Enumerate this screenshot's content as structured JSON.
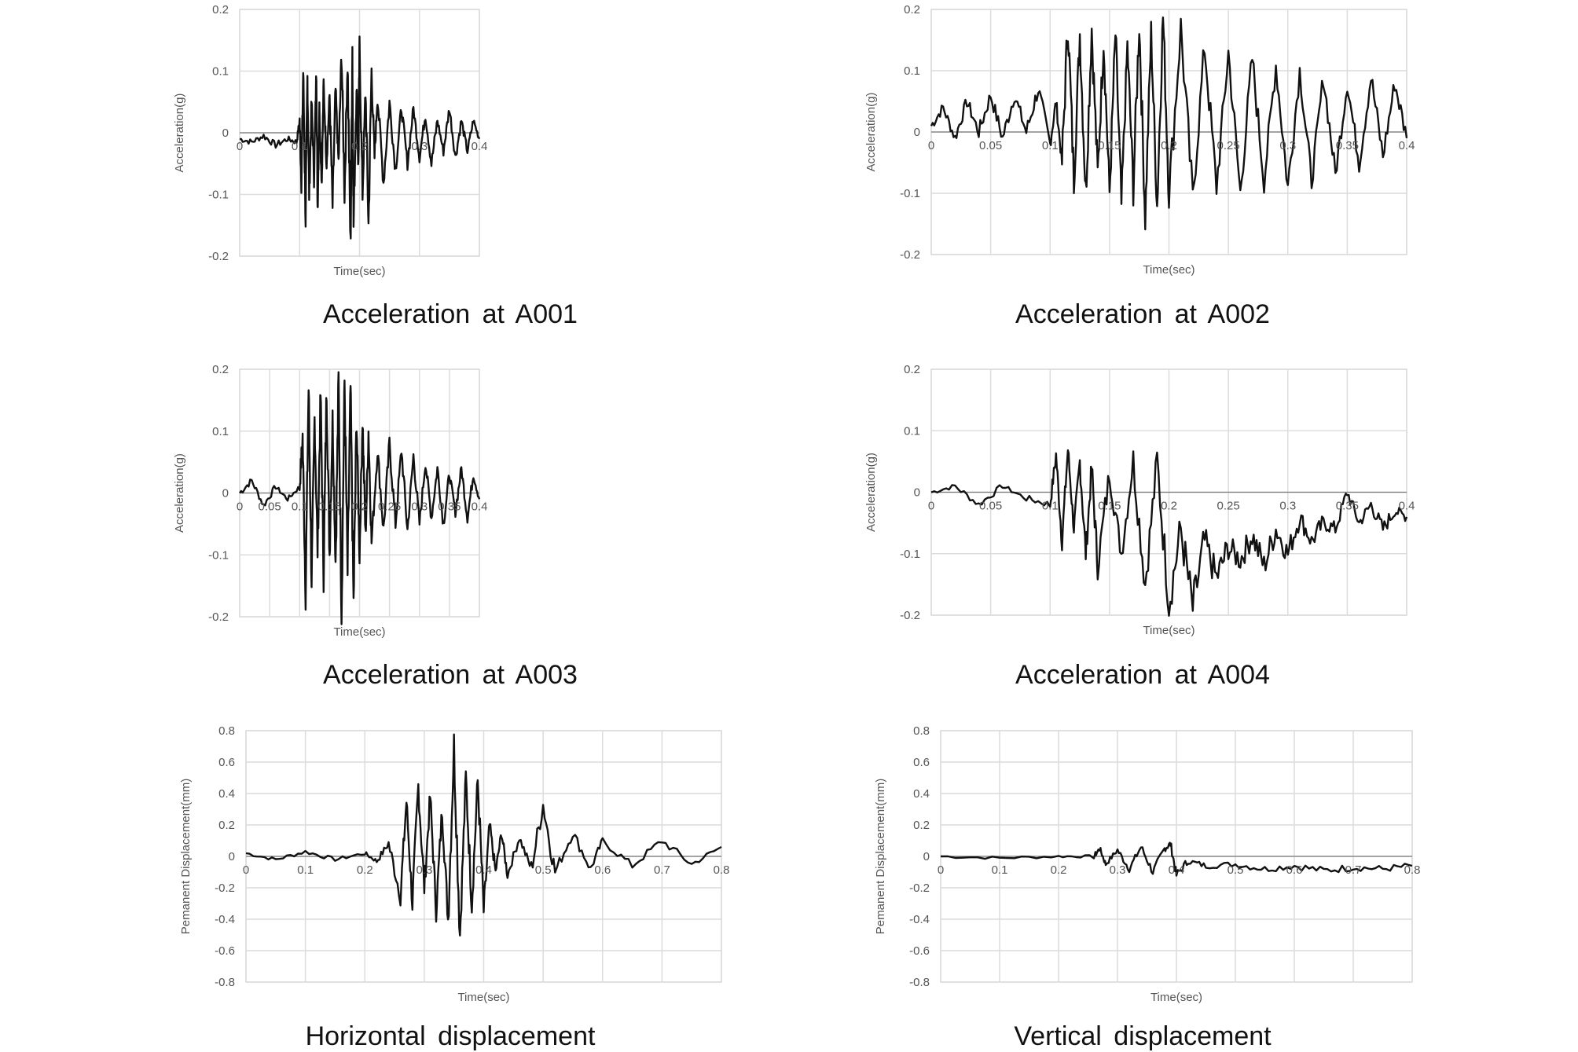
{
  "chart_data": [
    {
      "type": "line",
      "caption": "Acceleration at A001",
      "xlabel": "Time(sec)",
      "ylabel": "Acceleration(g)",
      "xlim": [
        0,
        0.4
      ],
      "ylim": [
        -0.2,
        0.2
      ],
      "xticks": [
        0,
        0.1,
        0.2,
        0.3,
        0.4
      ],
      "xtick_labels": [
        "0",
        "0.1",
        "0.2",
        "0.3",
        "0.4"
      ],
      "yticks": [
        -0.2,
        -0.1,
        0,
        0.1,
        0.2
      ],
      "ytick_labels": [
        "-0.2",
        "-0.1",
        "0",
        "0.1",
        "0.2"
      ],
      "grid": true,
      "series": [
        {
          "x": [
            0,
            0.02,
            0.04,
            0.06,
            0.08,
            0.095,
            0.1,
            0.103,
            0.106,
            0.11,
            0.113,
            0.116,
            0.12,
            0.124,
            0.128,
            0.13,
            0.133,
            0.137,
            0.14,
            0.145,
            0.15,
            0.155,
            0.16,
            0.165,
            0.17,
            0.175,
            0.18,
            0.185,
            0.188,
            0.19,
            0.195,
            0.198,
            0.2,
            0.205,
            0.21,
            0.215,
            0.22,
            0.225,
            0.23,
            0.24,
            0.25,
            0.26,
            0.27,
            0.28,
            0.29,
            0.3,
            0.31,
            0.32,
            0.33,
            0.34,
            0.35,
            0.36,
            0.37,
            0.38,
            0.39,
            0.4
          ],
          "y": [
            -0.01,
            -0.015,
            -0.005,
            -0.02,
            -0.01,
            -0.015,
            0.02,
            -0.08,
            0.1,
            -0.14,
            0.09,
            -0.1,
            0.05,
            -0.07,
            0.1,
            -0.12,
            0.04,
            -0.08,
            0.08,
            -0.05,
            0.06,
            -0.12,
            0.07,
            -0.05,
            0.13,
            -0.1,
            0.12,
            -0.19,
            0.14,
            -0.15,
            0.08,
            -0.06,
            0.14,
            -0.1,
            0.07,
            -0.15,
            0.1,
            -0.04,
            0.06,
            -0.08,
            0.05,
            -0.06,
            0.04,
            -0.05,
            0.04,
            -0.04,
            0.03,
            -0.05,
            0.02,
            -0.03,
            0.04,
            -0.04,
            0.02,
            -0.03,
            0.02,
            -0.01
          ]
        }
      ]
    },
    {
      "type": "line",
      "caption": "Acceleration at A002",
      "xlabel": "Time(sec)",
      "ylabel": "Acceleration(g)",
      "xlim": [
        0,
        0.4
      ],
      "ylim": [
        -0.2,
        0.2
      ],
      "xticks": [
        0,
        0.05,
        0.1,
        0.15,
        0.2,
        0.25,
        0.3,
        0.35,
        0.4
      ],
      "xtick_labels": [
        "0",
        "0.05",
        "0.1",
        "0.15",
        "0.2",
        "0.25",
        "0.3",
        "0.35",
        "0.4"
      ],
      "yticks": [
        -0.2,
        -0.1,
        0,
        0.1,
        0.2
      ],
      "ytick_labels": [
        "-0.2",
        "-0.1",
        "0",
        "0.1",
        "0.2"
      ],
      "grid": true,
      "series": [
        {
          "x": [
            0,
            0.01,
            0.02,
            0.03,
            0.04,
            0.05,
            0.06,
            0.07,
            0.08,
            0.09,
            0.1,
            0.105,
            0.11,
            0.115,
            0.12,
            0.125,
            0.13,
            0.135,
            0.14,
            0.145,
            0.15,
            0.155,
            0.16,
            0.165,
            0.17,
            0.175,
            0.18,
            0.185,
            0.19,
            0.195,
            0.2,
            0.21,
            0.22,
            0.23,
            0.24,
            0.25,
            0.26,
            0.27,
            0.28,
            0.29,
            0.3,
            0.31,
            0.32,
            0.33,
            0.34,
            0.35,
            0.36,
            0.37,
            0.38,
            0.39,
            0.4
          ],
          "y": [
            0.01,
            0.04,
            -0.01,
            0.05,
            0.0,
            0.06,
            -0.01,
            0.06,
            0.0,
            0.07,
            -0.02,
            0.05,
            -0.05,
            0.18,
            -0.08,
            0.16,
            -0.1,
            0.17,
            -0.07,
            0.15,
            -0.1,
            0.16,
            -0.12,
            0.14,
            -0.09,
            0.18,
            -0.14,
            0.16,
            -0.12,
            0.19,
            -0.1,
            0.17,
            -0.11,
            0.14,
            -0.09,
            0.13,
            -0.1,
            0.12,
            -0.08,
            0.11,
            -0.09,
            0.1,
            -0.08,
            0.09,
            -0.07,
            0.08,
            -0.05,
            0.09,
            -0.04,
            0.08,
            -0.01
          ]
        }
      ]
    },
    {
      "type": "line",
      "caption": "Acceleration at A003",
      "xlabel": "Time(sec)",
      "ylabel": "Acceleration(g)",
      "xlim": [
        0,
        0.4
      ],
      "ylim": [
        -0.2,
        0.2
      ],
      "xticks": [
        0,
        0.05,
        0.1,
        0.15,
        0.2,
        0.25,
        0.3,
        0.35,
        0.4
      ],
      "xtick_labels": [
        "0",
        "0.05",
        "0.1",
        "0.15",
        "0.2",
        "0.25",
        "0.3",
        "0.35",
        "0.4"
      ],
      "yticks": [
        -0.2,
        -0.1,
        0,
        0.1,
        0.2
      ],
      "ytick_labels": [
        "-0.2",
        "-0.1",
        "0",
        "0.1",
        "0.2"
      ],
      "grid": true,
      "series": [
        {
          "x": [
            0,
            0.02,
            0.04,
            0.06,
            0.08,
            0.1,
            0.105,
            0.11,
            0.115,
            0.12,
            0.125,
            0.13,
            0.135,
            0.14,
            0.145,
            0.15,
            0.155,
            0.16,
            0.165,
            0.17,
            0.175,
            0.18,
            0.185,
            0.19,
            0.195,
            0.2,
            0.205,
            0.21,
            0.215,
            0.22,
            0.23,
            0.24,
            0.25,
            0.26,
            0.27,
            0.28,
            0.29,
            0.3,
            0.31,
            0.32,
            0.33,
            0.34,
            0.35,
            0.36,
            0.37,
            0.38,
            0.39,
            0.4
          ],
          "y": [
            0.0,
            0.02,
            -0.02,
            0.01,
            -0.01,
            0.01,
            0.09,
            -0.16,
            0.17,
            -0.14,
            0.12,
            -0.09,
            0.16,
            -0.13,
            0.17,
            -0.1,
            0.12,
            -0.11,
            0.18,
            -0.19,
            0.18,
            -0.13,
            0.17,
            -0.18,
            0.12,
            -0.1,
            0.12,
            -0.07,
            0.1,
            -0.08,
            0.07,
            -0.06,
            0.08,
            -0.05,
            0.07,
            -0.06,
            0.06,
            -0.05,
            0.05,
            -0.04,
            0.04,
            -0.05,
            0.03,
            -0.03,
            0.04,
            -0.04,
            0.03,
            -0.01
          ]
        }
      ]
    },
    {
      "type": "line",
      "caption": "Acceleration at A004",
      "xlabel": "Time(sec)",
      "ylabel": "Acceleration(g)",
      "xlim": [
        0,
        0.4
      ],
      "ylim": [
        -0.2,
        0.2
      ],
      "xticks": [
        0,
        0.05,
        0.1,
        0.15,
        0.2,
        0.25,
        0.3,
        0.35,
        0.4
      ],
      "xtick_labels": [
        "0",
        "0.05",
        "0.1",
        "0.15",
        "0.2",
        "0.25",
        "0.3",
        "0.35",
        "0.4"
      ],
      "yticks": [
        -0.2,
        -0.1,
        0,
        0.1,
        0.2
      ],
      "ytick_labels": [
        "-0.2",
        "-0.1",
        "0",
        "0.1",
        "0.2"
      ],
      "grid": true,
      "series": [
        {
          "x": [
            0,
            0.02,
            0.04,
            0.06,
            0.08,
            0.1,
            0.105,
            0.11,
            0.115,
            0.12,
            0.125,
            0.13,
            0.135,
            0.14,
            0.15,
            0.16,
            0.17,
            0.18,
            0.19,
            0.2,
            0.21,
            0.22,
            0.23,
            0.24,
            0.25,
            0.26,
            0.27,
            0.28,
            0.29,
            0.3,
            0.31,
            0.32,
            0.33,
            0.34,
            0.35,
            0.36,
            0.37,
            0.38,
            0.39,
            0.4
          ],
          "y": [
            0.0,
            0.01,
            -0.02,
            0.01,
            -0.01,
            -0.02,
            0.06,
            -0.08,
            0.07,
            -0.06,
            0.05,
            -0.1,
            0.04,
            -0.12,
            0.03,
            -0.1,
            0.05,
            -0.15,
            0.05,
            -0.18,
            -0.06,
            -0.19,
            -0.08,
            -0.14,
            -0.09,
            -0.11,
            -0.07,
            -0.12,
            -0.06,
            -0.1,
            -0.04,
            -0.08,
            -0.05,
            -0.06,
            0.0,
            -0.05,
            -0.02,
            -0.06,
            -0.03,
            -0.04
          ]
        }
      ]
    },
    {
      "type": "line",
      "caption": "Horizontal displacement",
      "xlabel": "Time(sec)",
      "ylabel": "Pemanent Displacement(mm)",
      "xlim": [
        0,
        0.8
      ],
      "ylim": [
        -0.8,
        0.8
      ],
      "xticks": [
        0,
        0.1,
        0.2,
        0.3,
        0.4,
        0.5,
        0.6,
        0.7,
        0.8
      ],
      "xtick_labels": [
        "0",
        "0.1",
        "0.2",
        "0.3",
        "0.4",
        "0.5",
        "0.6",
        "0.7",
        "0.8"
      ],
      "yticks": [
        -0.8,
        -0.6,
        -0.4,
        -0.2,
        0,
        0.2,
        0.4,
        0.6,
        0.8
      ],
      "ytick_labels": [
        "-0.8",
        "-0.6",
        "-0.4",
        "-0.2",
        "0",
        "0.2",
        "0.4",
        "0.6",
        "0.8"
      ],
      "grid": true,
      "series": [
        {
          "x": [
            0,
            0.05,
            0.1,
            0.15,
            0.2,
            0.22,
            0.24,
            0.26,
            0.27,
            0.28,
            0.29,
            0.3,
            0.31,
            0.32,
            0.33,
            0.34,
            0.35,
            0.36,
            0.37,
            0.38,
            0.39,
            0.4,
            0.41,
            0.42,
            0.43,
            0.44,
            0.46,
            0.48,
            0.5,
            0.52,
            0.55,
            0.58,
            0.6,
            0.65,
            0.7,
            0.75,
            0.8
          ],
          "y": [
            0.02,
            -0.02,
            0.03,
            -0.02,
            0.02,
            -0.03,
            0.08,
            -0.25,
            0.35,
            -0.3,
            0.45,
            -0.2,
            0.38,
            -0.35,
            0.3,
            -0.4,
            0.7,
            -0.5,
            0.5,
            -0.3,
            0.48,
            -0.35,
            0.2,
            -0.1,
            0.15,
            -0.12,
            0.12,
            -0.08,
            0.33,
            -0.1,
            0.15,
            -0.08,
            0.1,
            -0.06,
            0.1,
            -0.05,
            0.06
          ]
        }
      ]
    },
    {
      "type": "line",
      "caption": "Vertical displacement",
      "xlabel": "Time(sec)",
      "ylabel": "Pemanent Displacement(mm)",
      "xlim": [
        0,
        0.8
      ],
      "ylim": [
        -0.8,
        0.8
      ],
      "xticks": [
        0,
        0.1,
        0.2,
        0.3,
        0.4,
        0.5,
        0.6,
        0.7,
        0.8
      ],
      "xtick_labels": [
        "0",
        "0.1",
        "0.2",
        "0.3",
        "0.4",
        "0.5",
        "0.6",
        "0.7",
        "0.8"
      ],
      "yticks": [
        -0.8,
        -0.6,
        -0.4,
        -0.2,
        0,
        0.2,
        0.4,
        0.6,
        0.8
      ],
      "ytick_labels": [
        "-0.8",
        "-0.6",
        "-0.4",
        "-0.2",
        "0",
        "0.2",
        "0.4",
        "0.6",
        "0.8"
      ],
      "grid": true,
      "series": [
        {
          "x": [
            0,
            0.1,
            0.2,
            0.26,
            0.27,
            0.28,
            0.3,
            0.32,
            0.34,
            0.36,
            0.38,
            0.39,
            0.4,
            0.42,
            0.45,
            0.5,
            0.55,
            0.6,
            0.65,
            0.7,
            0.75,
            0.8
          ],
          "y": [
            0.0,
            -0.01,
            0.0,
            0.0,
            0.05,
            -0.05,
            0.04,
            -0.08,
            0.06,
            -0.1,
            0.05,
            0.08,
            -0.12,
            -0.03,
            -0.06,
            -0.05,
            -0.08,
            -0.06,
            -0.09,
            -0.07,
            -0.08,
            -0.06
          ]
        }
      ]
    }
  ]
}
